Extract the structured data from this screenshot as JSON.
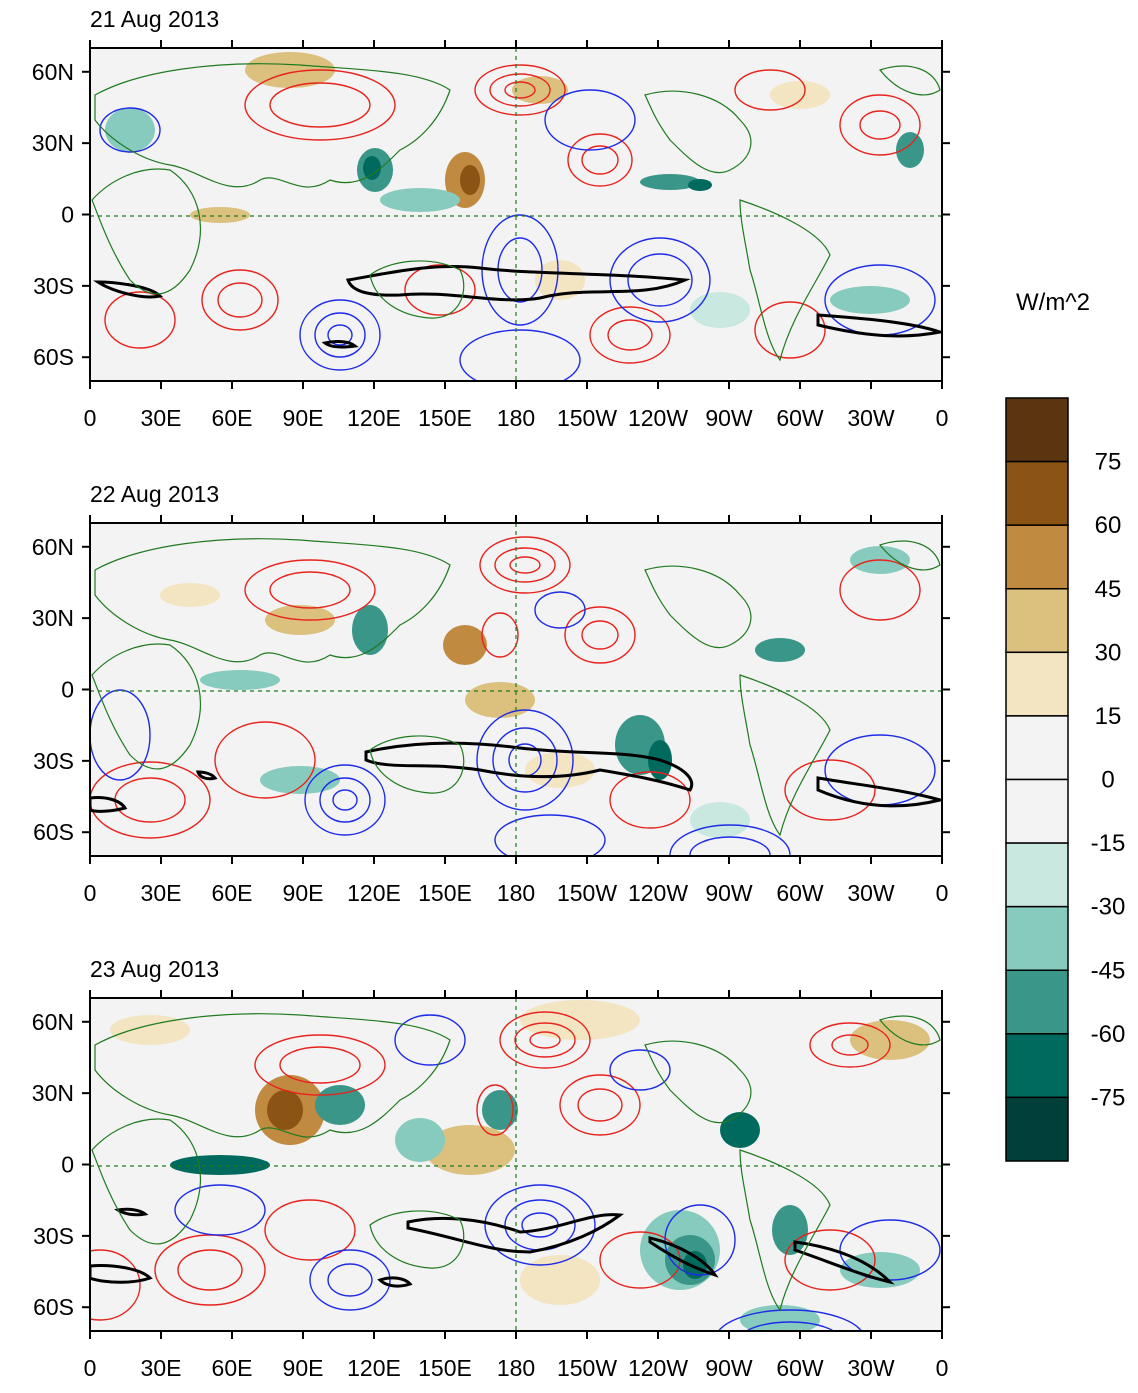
{
  "panels": [
    {
      "title": "21 Aug 2013"
    },
    {
      "title": "22 Aug 2013"
    },
    {
      "title": "23 Aug 2013"
    }
  ],
  "x_ticks": [
    "0",
    "30E",
    "60E",
    "90E",
    "120E",
    "150E",
    "180",
    "150W",
    "120W",
    "90W",
    "60W",
    "30W",
    "0"
  ],
  "y_ticks": [
    "60N",
    "30N",
    "0",
    "30S",
    "60S"
  ],
  "colorbar": {
    "unit": "W/m^2",
    "labels": [
      "75",
      "60",
      "45",
      "30",
      "15",
      "0",
      "-15",
      "-30",
      "-45",
      "-60",
      "-75"
    ],
    "colors": [
      "#5a3510",
      "#8b5414",
      "#c08a40",
      "#dcc07e",
      "#f3e4c2",
      "#f3f3f3",
      "#f3f3f3",
      "#c8e8e0",
      "#86cbbd",
      "#3a9688",
      "#016a5e",
      "#00403a"
    ]
  },
  "colors": {
    "positive_contour": "#e8221c",
    "negative_contour": "#1e2be8",
    "thick_contour": "#000000",
    "coastline": "#1f7a1f"
  }
}
